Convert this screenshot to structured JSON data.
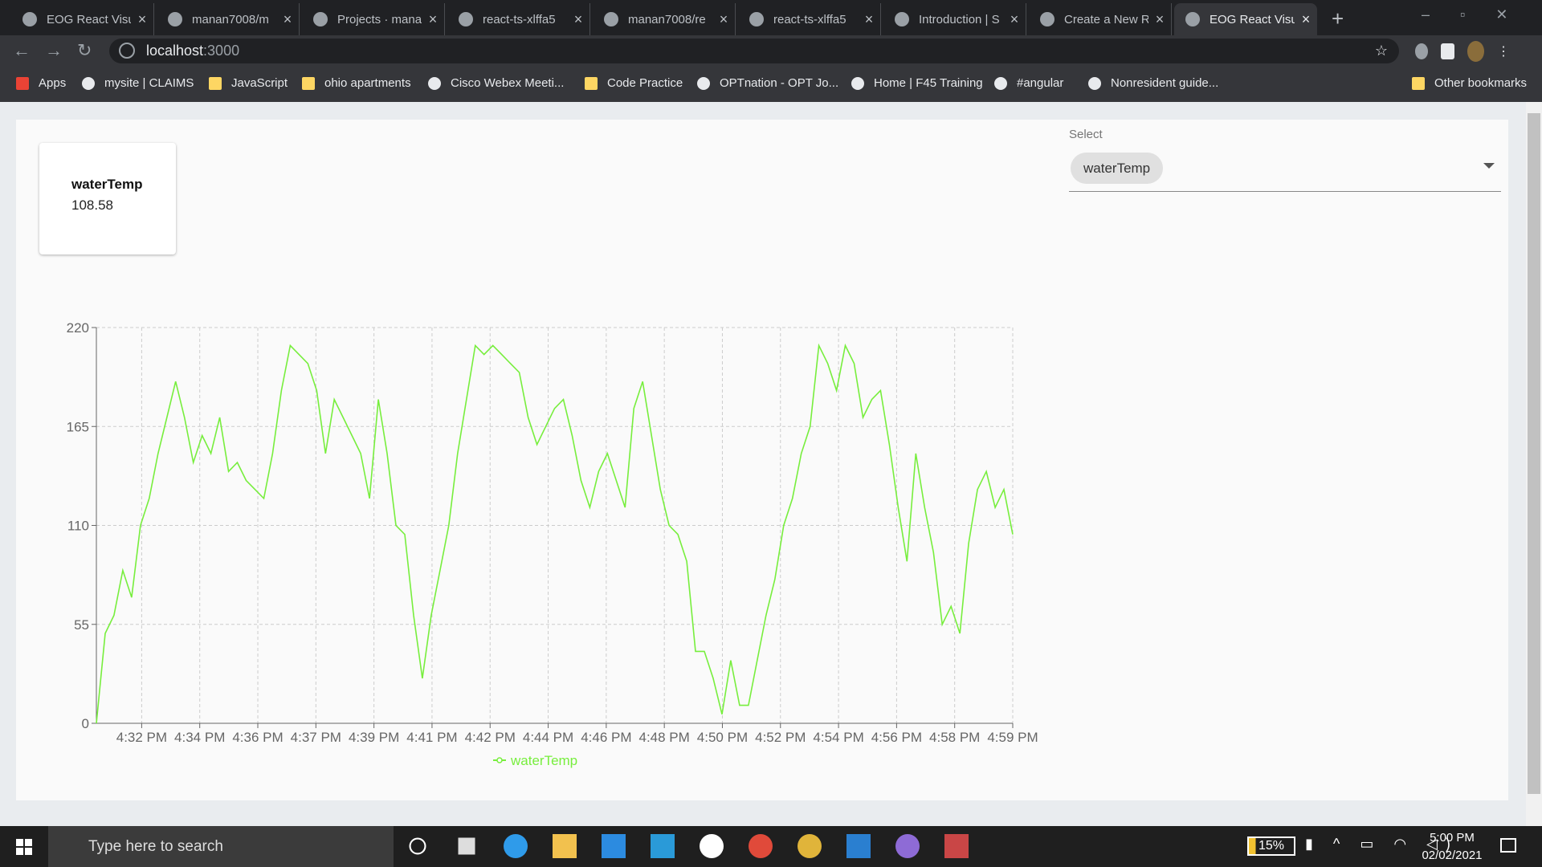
{
  "tabs": [
    "EOG React Visu",
    "manan7008/m",
    "Projects · mana",
    "react-ts-xlffa5",
    "manan7008/re",
    "react-ts-xlffa5",
    "Introduction | S",
    "Create a New R",
    "EOG React Visu"
  ],
  "address": {
    "host": "localhost",
    "port": ":3000"
  },
  "bookmarks": [
    "Apps",
    "mysite | CLAIMS",
    "JavaScript",
    "ohio apartments",
    "Cisco Webex Meeti...",
    "Code Practice",
    "OPTnation - OPT Jo...",
    "Home | F45 Training",
    "#angular",
    "Nonresident guide..."
  ],
  "other_bookmarks": "Other bookmarks",
  "card": {
    "title": "waterTemp",
    "value": 108.58
  },
  "select": {
    "label": "Select",
    "chip": "waterTemp"
  },
  "chart_data": {
    "type": "line",
    "series": [
      {
        "name": "waterTemp",
        "color": "#77ee3d",
        "values": [
          0,
          50,
          60,
          85,
          70,
          110,
          125,
          150,
          170,
          190,
          170,
          145,
          160,
          150,
          170,
          140,
          145,
          135,
          130,
          125,
          150,
          185,
          210,
          205,
          200,
          185,
          150,
          180,
          170,
          160,
          150,
          125,
          180,
          150,
          110,
          105,
          60,
          25,
          60,
          85,
          110,
          150,
          180,
          210,
          205,
          210,
          205,
          200,
          195,
          170,
          155,
          165,
          175,
          180,
          160,
          135,
          120,
          140,
          150,
          135,
          120,
          175,
          190,
          160,
          130,
          110,
          105,
          90,
          40,
          40,
          25,
          5,
          35,
          10,
          10,
          35,
          60,
          80,
          110,
          125,
          150,
          165,
          210,
          200,
          185,
          210,
          200,
          170,
          180,
          185,
          155,
          120,
          90,
          150,
          120,
          95,
          55,
          65,
          50,
          100,
          130,
          140,
          120,
          130,
          105
        ]
      }
    ],
    "ylim": [
      0,
      220
    ],
    "yticks": [
      0,
      55,
      110,
      165,
      220
    ],
    "xticks": [
      "4:32 PM",
      "4:34 PM",
      "4:36 PM",
      "4:37 PM",
      "4:39 PM",
      "4:41 PM",
      "4:42 PM",
      "4:44 PM",
      "4:46 PM",
      "4:48 PM",
      "4:50 PM",
      "4:52 PM",
      "4:54 PM",
      "4:56 PM",
      "4:58 PM",
      "4:59 PM"
    ],
    "grid": true,
    "legend": "bottom"
  },
  "taskbar": {
    "search": "Type here to search",
    "battery": "15%",
    "time": "5:00 PM",
    "date": "02/02/2021"
  }
}
